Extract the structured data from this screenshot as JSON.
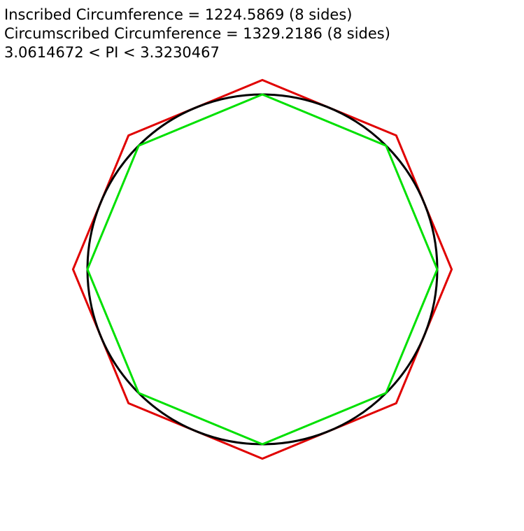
{
  "info": {
    "inscribed": "Inscribed Circumference = 1224.5869 (8 sides)",
    "circumscribed": "Circumscribed Circumference = 1329.2186 (8 sides)",
    "pi_bounds": "3.0614672 < PI < 3.3230467"
  },
  "diagram": {
    "sides": 8,
    "colors": {
      "circle": "#000000",
      "inscribed": "#00e000",
      "circumscribed": "#e00000"
    }
  }
}
